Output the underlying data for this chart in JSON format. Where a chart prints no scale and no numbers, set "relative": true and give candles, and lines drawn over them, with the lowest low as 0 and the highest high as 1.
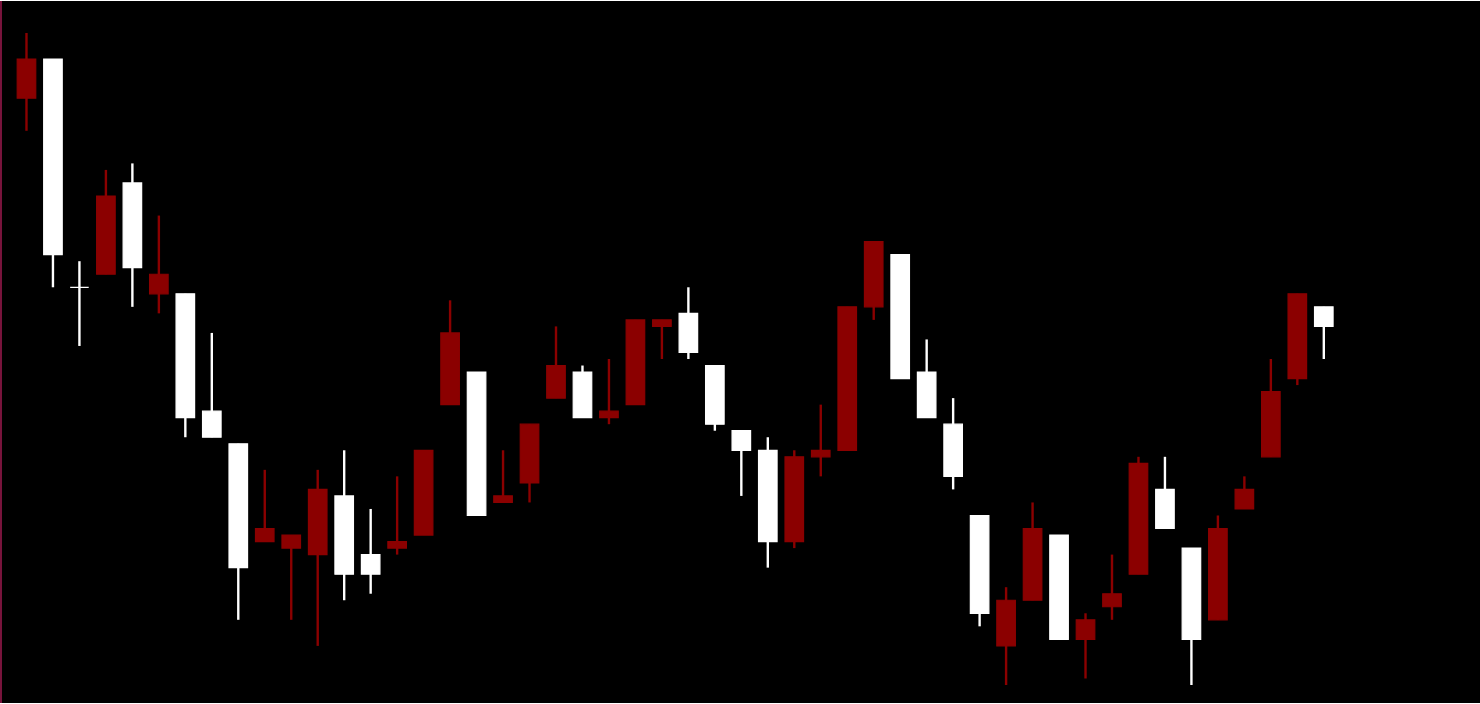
{
  "chart_data": {
    "type": "candlestick",
    "relative": true,
    "categories": [
      null,
      null,
      null,
      null,
      null,
      null,
      null,
      null,
      null,
      null,
      null,
      null,
      null,
      null,
      null,
      null,
      null,
      null,
      null,
      null,
      null,
      null,
      null,
      null,
      null,
      null,
      null,
      null,
      null,
      null,
      null,
      null,
      null,
      null,
      null,
      null,
      null,
      null,
      null,
      null,
      null,
      null,
      null,
      null,
      null,
      null,
      null,
      null,
      null,
      null
    ],
    "ohlc": [
      [
        0.9,
        1.0,
        0.85,
        0.96
      ],
      [
        0.96,
        0.96,
        0.61,
        0.66
      ],
      [
        0.61,
        0.65,
        0.52,
        0.61
      ],
      [
        0.63,
        0.79,
        0.63,
        0.75
      ],
      [
        0.77,
        0.8,
        0.58,
        0.64
      ],
      [
        0.6,
        0.72,
        0.57,
        0.63
      ],
      [
        0.6,
        0.6,
        0.38,
        0.41
      ],
      [
        0.42,
        0.54,
        0.38,
        0.38
      ],
      [
        0.37,
        0.37,
        0.1,
        0.18
      ],
      [
        0.22,
        0.33,
        0.22,
        0.24
      ],
      [
        0.21,
        0.23,
        0.1,
        0.23
      ],
      [
        0.2,
        0.33,
        0.06,
        0.3
      ],
      [
        0.29,
        0.36,
        0.13,
        0.17
      ],
      [
        0.2,
        0.27,
        0.14,
        0.17
      ],
      [
        0.21,
        0.32,
        0.2,
        0.22
      ],
      [
        0.23,
        0.36,
        0.23,
        0.36
      ],
      [
        0.43,
        0.59,
        0.43,
        0.54
      ],
      [
        0.48,
        0.48,
        0.26,
        0.26
      ],
      [
        0.28,
        0.36,
        0.28,
        0.29
      ],
      [
        0.31,
        0.4,
        0.28,
        0.4
      ],
      [
        0.44,
        0.55,
        0.44,
        0.49
      ],
      [
        0.48,
        0.49,
        0.41,
        0.41
      ],
      [
        0.41,
        0.5,
        0.4,
        0.42
      ],
      [
        0.43,
        0.56,
        0.43,
        0.56
      ],
      [
        0.55,
        0.56,
        0.5,
        0.56
      ],
      [
        0.57,
        0.61,
        0.5,
        0.51
      ],
      [
        0.49,
        0.49,
        0.39,
        0.4
      ],
      [
        0.39,
        0.39,
        0.29,
        0.36
      ],
      [
        0.36,
        0.38,
        0.18,
        0.22
      ],
      [
        0.22,
        0.36,
        0.21,
        0.35
      ],
      [
        0.35,
        0.43,
        0.32,
        0.36
      ],
      [
        0.36,
        0.58,
        0.36,
        0.58
      ],
      [
        0.58,
        0.68,
        0.56,
        0.68
      ],
      [
        0.66,
        0.66,
        0.47,
        0.47
      ],
      [
        0.48,
        0.53,
        0.41,
        0.41
      ],
      [
        0.4,
        0.44,
        0.3,
        0.32
      ],
      [
        0.26,
        0.26,
        0.09,
        0.11
      ],
      [
        0.06,
        0.15,
        0.0,
        0.13
      ],
      [
        0.13,
        0.28,
        0.13,
        0.24
      ],
      [
        0.23,
        0.23,
        0.07,
        0.07
      ],
      [
        0.07,
        0.11,
        0.01,
        0.1
      ],
      [
        0.12,
        0.2,
        0.1,
        0.14
      ],
      [
        0.17,
        0.35,
        0.17,
        0.34
      ],
      [
        0.3,
        0.35,
        0.24,
        0.24
      ],
      [
        0.21,
        0.21,
        0.0,
        0.07
      ],
      [
        0.1,
        0.26,
        0.1,
        0.24
      ],
      [
        0.27,
        0.32,
        0.27,
        0.3
      ],
      [
        0.35,
        0.5,
        0.35,
        0.45
      ],
      [
        0.47,
        0.6,
        0.46,
        0.6
      ],
      [
        0.58,
        0.58,
        0.5,
        0.55
      ]
    ],
    "colors": [
      "#8b0000",
      "#ffffff",
      "#ffffff",
      "#8b0000",
      "#ffffff",
      "#8b0000",
      "#ffffff",
      "#ffffff",
      "#ffffff",
      "#8b0000",
      "#8b0000",
      "#8b0000",
      "#ffffff",
      "#ffffff",
      "#8b0000",
      "#8b0000",
      "#8b0000",
      "#ffffff",
      "#8b0000",
      "#8b0000",
      "#8b0000",
      "#ffffff",
      "#8b0000",
      "#8b0000",
      "#8b0000",
      "#ffffff",
      "#ffffff",
      "#ffffff",
      "#ffffff",
      "#8b0000",
      "#8b0000",
      "#8b0000",
      "#8b0000",
      "#ffffff",
      "#ffffff",
      "#ffffff",
      "#ffffff",
      "#8b0000",
      "#8b0000",
      "#ffffff",
      "#8b0000",
      "#8b0000",
      "#8b0000",
      "#ffffff",
      "#ffffff",
      "#8b0000",
      "#8b0000",
      "#8b0000",
      "#8b0000",
      "#ffffff"
    ]
  }
}
